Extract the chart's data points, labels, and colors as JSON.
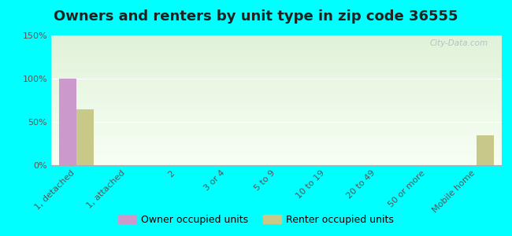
{
  "title": "Owners and renters by unit type in zip code 36555",
  "categories": [
    "1, detached",
    "1, attached",
    "2",
    "3 or 4",
    "5 to 9",
    "10 to 19",
    "20 to 49",
    "50 or more",
    "Mobile home"
  ],
  "owner_values": [
    100,
    0,
    0,
    0,
    0,
    0,
    0,
    0,
    0
  ],
  "renter_values": [
    65,
    0,
    0,
    0,
    0,
    0,
    0,
    0,
    35
  ],
  "owner_color": "#cc99cc",
  "renter_color": "#c8c888",
  "ylim": [
    0,
    150
  ],
  "yticks": [
    0,
    50,
    100,
    150
  ],
  "ytick_labels": [
    "0%",
    "50%",
    "100%",
    "150%"
  ],
  "background_color": "#00ffff",
  "bar_width": 0.35,
  "legend_owner": "Owner occupied units",
  "legend_renter": "Renter occupied units",
  "watermark": "City-Data.com",
  "title_fontsize": 13,
  "label_fontsize": 8
}
